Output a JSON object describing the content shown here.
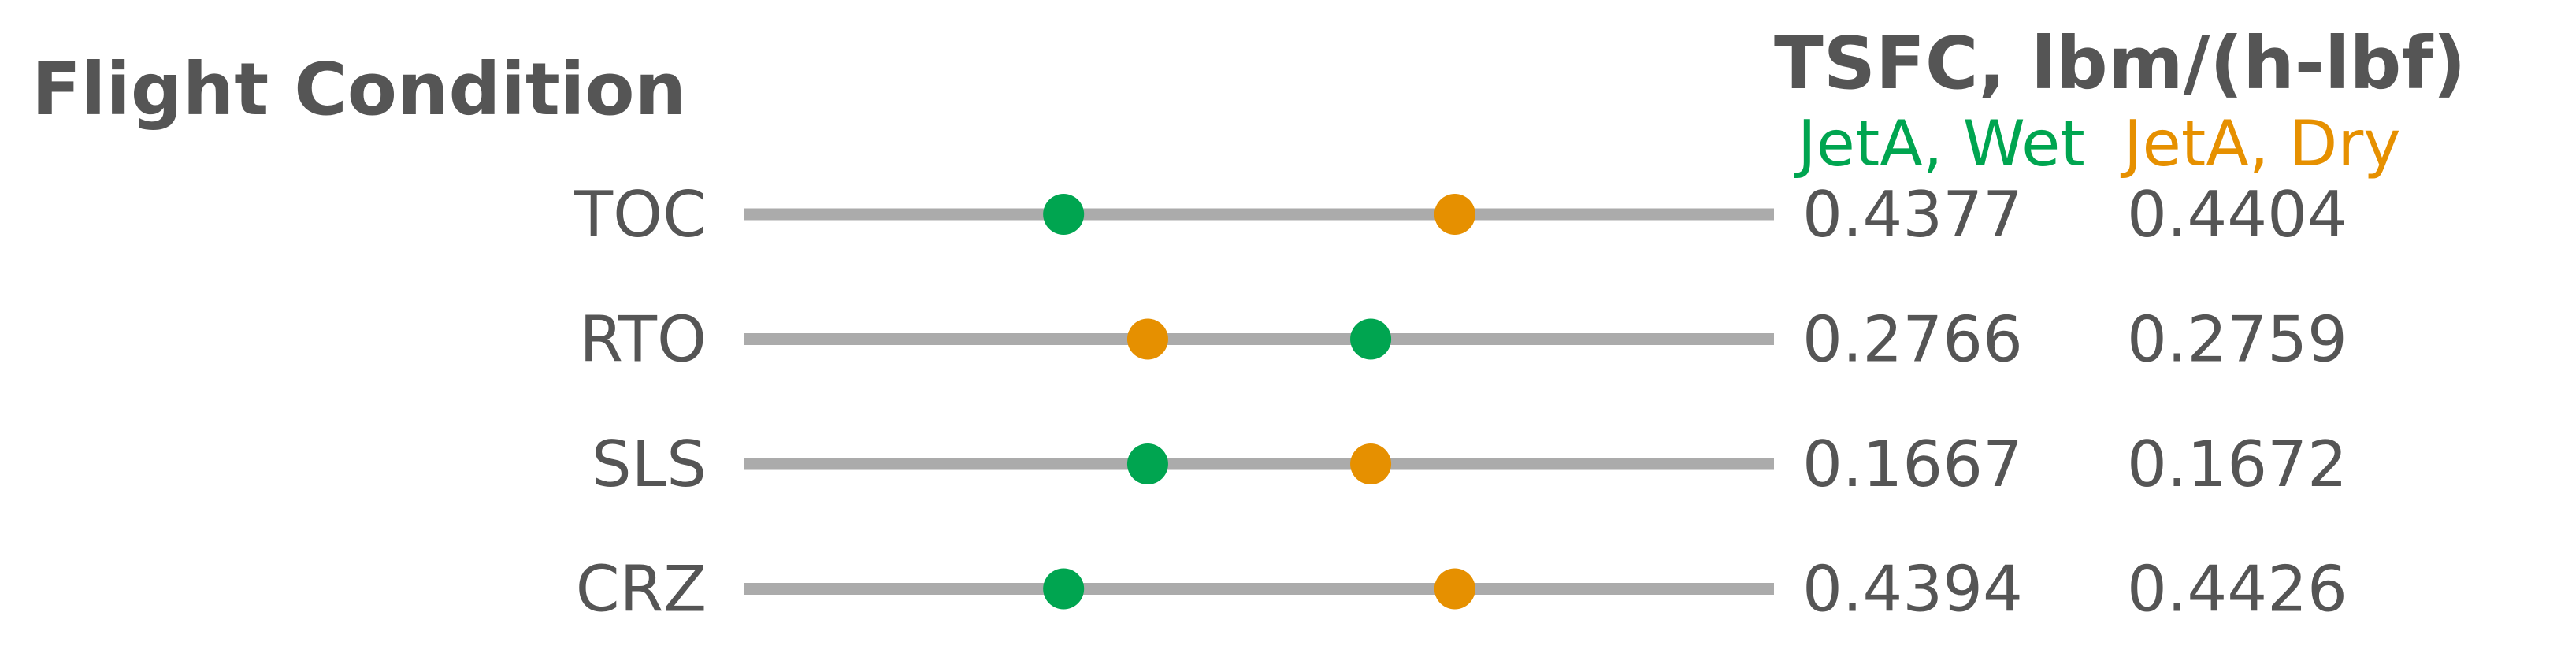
{
  "chart_data": {
    "type": "dumbbell",
    "left_header": "Flight Condition",
    "right_header": "TSFC, lbm/(h-lbf)",
    "categories": [
      "TOC",
      "RTO",
      "SLS",
      "CRZ"
    ],
    "series": [
      {
        "name": "JetA, Wet",
        "color": "#00a550",
        "values": [
          0.4377,
          0.2766,
          0.1667,
          0.4394
        ]
      },
      {
        "name": "JetA, Dry",
        "color": "#e69000",
        "values": [
          0.4404,
          0.2759,
          0.1672,
          0.4426
        ]
      }
    ],
    "value_labels": [
      [
        "0.4377",
        "0.4404"
      ],
      [
        "0.2766",
        "0.2759"
      ],
      [
        "0.1667",
        "0.1672"
      ],
      [
        "0.4394",
        "0.4426"
      ]
    ],
    "track_color": "#ababab",
    "text_color": "#555555"
  }
}
